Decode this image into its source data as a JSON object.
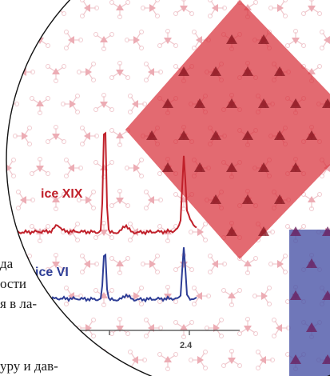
{
  "article_text": {
    "lines": [
      "да",
      "ости",
      "я в ла-",
      "уру и дав-"
    ]
  },
  "figure": {
    "colors": {
      "red_phase": "#d8303a",
      "blue_phase": "#4b55a8",
      "red_trace": "#c0202a",
      "blue_trace": "#2d3d96",
      "lattice": "#e8a0a8"
    },
    "lattice_icon": "water-molecule-icon"
  },
  "chart_data": {
    "type": "line",
    "title": "",
    "xlabel": "",
    "ylabel": "",
    "tick_labels": [
      "2.4"
    ],
    "series": [
      {
        "name": "ice XIX",
        "color": "#c0202a",
        "peaks": [
          "sharp",
          "small",
          "small",
          "sharp",
          "broad"
        ]
      },
      {
        "name": "ice VI",
        "color": "#2d3d96",
        "peaks": [
          "sharp",
          "small",
          "sharp"
        ]
      }
    ]
  }
}
